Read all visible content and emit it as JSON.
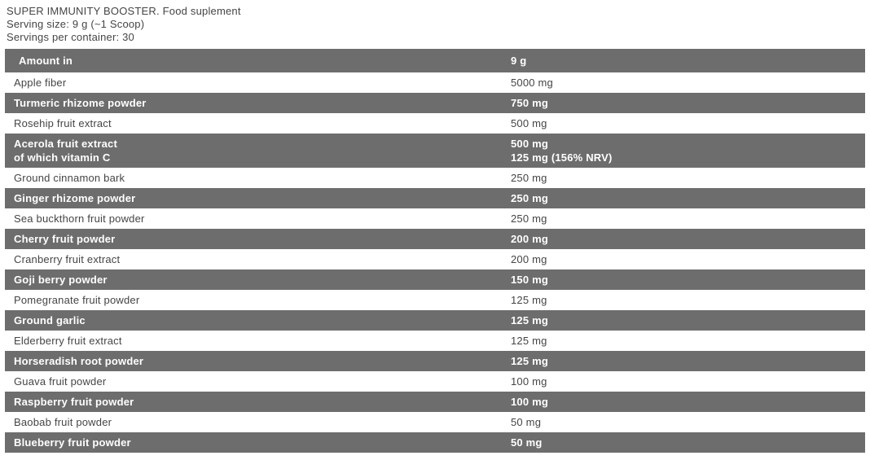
{
  "header": {
    "title": "SUPER IMMUNITY BOOSTER. Food suplement",
    "serving_size": "Serving size: 9 g (~1 Scoop)",
    "servings_per_container": "Servings per container: 30"
  },
  "table": {
    "columns": [
      "Amount in",
      "9 g"
    ],
    "rows": [
      {
        "name": "Apple fiber",
        "amount": "5000 mg",
        "highlight": false
      },
      {
        "name": "Turmeric rhizome powder",
        "amount": "750 mg",
        "highlight": true
      },
      {
        "name": "Rosehip fruit extract",
        "amount": "500 mg",
        "highlight": false
      },
      {
        "name": "Acerola fruit extract\nof which vitamin C",
        "amount": "500 mg\n125 mg (156% NRV)",
        "highlight": true
      },
      {
        "name": "Ground cinnamon bark",
        "amount": "250 mg",
        "highlight": false
      },
      {
        "name": "Ginger rhizome powder",
        "amount": "250 mg",
        "highlight": true
      },
      {
        "name": "Sea buckthorn fruit powder",
        "amount": "250 mg",
        "highlight": false
      },
      {
        "name": "Cherry fruit powder",
        "amount": "200 mg",
        "highlight": true
      },
      {
        "name": "Cranberry fruit extract",
        "amount": "200 mg",
        "highlight": false
      },
      {
        "name": "Goji berry powder",
        "amount": "150 mg",
        "highlight": true
      },
      {
        "name": "Pomegranate fruit powder",
        "amount": "125 mg",
        "highlight": false
      },
      {
        "name": "Ground garlic",
        "amount": "125 mg",
        "highlight": true
      },
      {
        "name": "Elderberry fruit extract",
        "amount": "125 mg",
        "highlight": false
      },
      {
        "name": "Horseradish root powder",
        "amount": "125 mg",
        "highlight": true
      },
      {
        "name": "Guava fruit powder",
        "amount": "100 mg",
        "highlight": false
      },
      {
        "name": "Raspberry fruit powder",
        "amount": "100 mg",
        "highlight": true
      },
      {
        "name": "Baobab fruit powder",
        "amount": "50 mg",
        "highlight": false
      },
      {
        "name": "Blueberry fruit powder",
        "amount": "50 mg",
        "highlight": true
      }
    ]
  },
  "colors": {
    "row_gray": "#6d6d6d",
    "text_dark": "#454545",
    "text_light": "#ffffff"
  }
}
